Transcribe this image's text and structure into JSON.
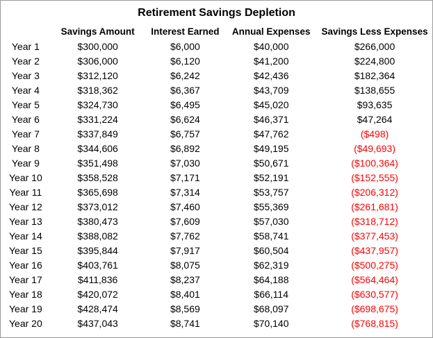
{
  "table": {
    "title": "Retirement Savings Depletion",
    "headers": [
      "",
      "Savings Amount",
      "Interest Earned",
      "Annual Expenses",
      "Savings Less Expenses"
    ],
    "rows": [
      [
        "Year 1",
        "$300,000",
        "$6,000",
        "$40,000",
        "$266,000"
      ],
      [
        "Year 2",
        "$306,000",
        "$6,120",
        "$41,200",
        "$224,800"
      ],
      [
        "Year 3",
        "$312,120",
        "$6,242",
        "$42,436",
        "$182,364"
      ],
      [
        "Year 4",
        "$318,362",
        "$6,367",
        "$43,709",
        "$138,655"
      ],
      [
        "Year 5",
        "$324,730",
        "$6,495",
        "$45,020",
        "$93,635"
      ],
      [
        "Year 6",
        "$331,224",
        "$6,624",
        "$46,371",
        "$47,264"
      ],
      [
        "Year 7",
        "$337,849",
        "$6,757",
        "$47,762",
        "($498)"
      ],
      [
        "Year 8",
        "$344,606",
        "$6,892",
        "$49,195",
        "($49,693)"
      ],
      [
        "Year 9",
        "$351,498",
        "$7,030",
        "$50,671",
        "($100,364)"
      ],
      [
        "Year 10",
        "$358,528",
        "$7,171",
        "$52,191",
        "($152,555)"
      ],
      [
        "Year 11",
        "$365,698",
        "$7,314",
        "$53,757",
        "($206,312)"
      ],
      [
        "Year 12",
        "$373,012",
        "$7,460",
        "$55,369",
        "($261,681)"
      ],
      [
        "Year 13",
        "$380,473",
        "$7,609",
        "$57,030",
        "($318,712)"
      ],
      [
        "Year 14",
        "$388,082",
        "$7,762",
        "$58,741",
        "($377,453)"
      ],
      [
        "Year 15",
        "$395,844",
        "$7,917",
        "$60,504",
        "($437,957)"
      ],
      [
        "Year 16",
        "$403,761",
        "$8,075",
        "$62,319",
        "($500,275)"
      ],
      [
        "Year 17",
        "$411,836",
        "$8,237",
        "$64,188",
        "($564,464)"
      ],
      [
        "Year 18",
        "$420,072",
        "$8,401",
        "$66,114",
        "($630,577)"
      ],
      [
        "Year 19",
        "$428,474",
        "$8,569",
        "$68,097",
        "($698,675)"
      ],
      [
        "Year 20",
        "$437,043",
        "$8,741",
        "$70,140",
        "($768,815)"
      ]
    ]
  }
}
